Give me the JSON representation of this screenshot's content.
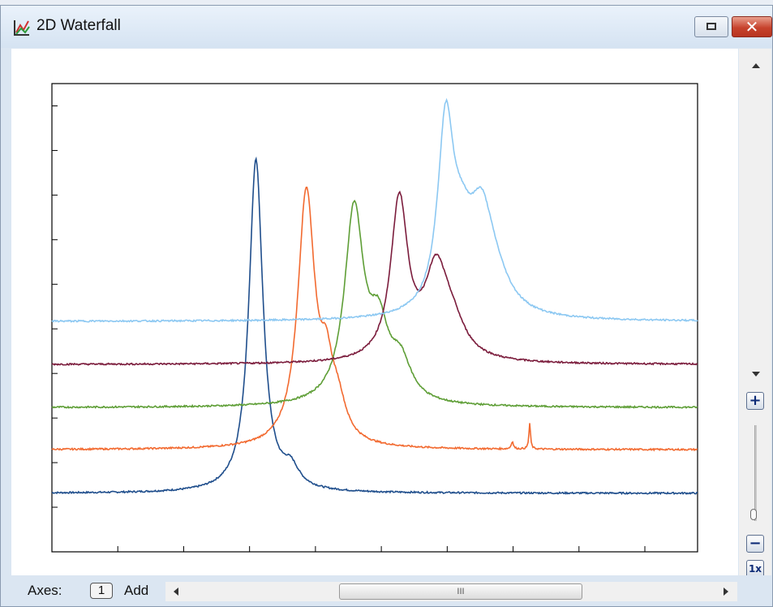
{
  "window": {
    "title": "2D Waterfall",
    "close_glyph": "✕"
  },
  "bottombar": {
    "axes_label": "Axes:",
    "axes_count": "1",
    "add_label": "Add",
    "scroll_thumb_grip": "III"
  },
  "zoom": {
    "plus": "+",
    "minus": "−",
    "reset": "1x"
  },
  "icons": {
    "app": "waterfall-chart-icon",
    "restore": "restore-icon",
    "close": "close-icon",
    "scroll_up": "arrow-up-icon",
    "scroll_down": "arrow-down-icon",
    "scroll_left": "arrow-left-icon",
    "scroll_right": "arrow-right-icon"
  },
  "chart_data": {
    "type": "line",
    "title": "",
    "xlabel": "",
    "ylabel": "",
    "xlim": [
      0,
      100
    ],
    "ylim": [
      0,
      100
    ],
    "grid": false,
    "legend": "none",
    "series": [
      {
        "color": "#1f4e8c",
        "baseline": 12.5,
        "peaks": [
          {
            "center": 31.6,
            "height": 71,
            "width": 1.3
          },
          {
            "center": 37.0,
            "height": 4,
            "width": 1.5
          }
        ]
      },
      {
        "color": "#f26a30",
        "baseline": 21.8,
        "peaks": [
          {
            "center": 39.4,
            "height": 54,
            "width": 1.6
          },
          {
            "center": 42.5,
            "height": 12,
            "width": 1.2
          },
          {
            "center": 44.3,
            "height": 7,
            "width": 1.5
          },
          {
            "center": 71.3,
            "height": 1.6,
            "width": 0.2
          },
          {
            "center": 74.0,
            "height": 5.5,
            "width": 0.15
          }
        ]
      },
      {
        "color": "#5e9e36",
        "baseline": 30.8,
        "peaks": [
          {
            "center": 46.8,
            "height": 41,
            "width": 1.8
          },
          {
            "center": 50.6,
            "height": 14,
            "width": 1.8
          },
          {
            "center": 54.0,
            "height": 8,
            "width": 2.0
          }
        ]
      },
      {
        "color": "#7b1c3c",
        "baseline": 40.0,
        "peaks": [
          {
            "center": 53.8,
            "height": 34,
            "width": 1.6
          },
          {
            "center": 59.5,
            "height": 18,
            "width": 2.2
          },
          {
            "center": 62.0,
            "height": 6,
            "width": 2.5
          }
        ]
      },
      {
        "color": "#8cc8f2",
        "baseline": 49.2,
        "peaks": [
          {
            "center": 61.0,
            "height": 39,
            "width": 1.5
          },
          {
            "center": 63.5,
            "height": 12,
            "width": 2.0
          },
          {
            "center": 66.5,
            "height": 18,
            "width": 2.2
          },
          {
            "center": 68.5,
            "height": 6,
            "width": 3.0
          }
        ]
      }
    ]
  }
}
